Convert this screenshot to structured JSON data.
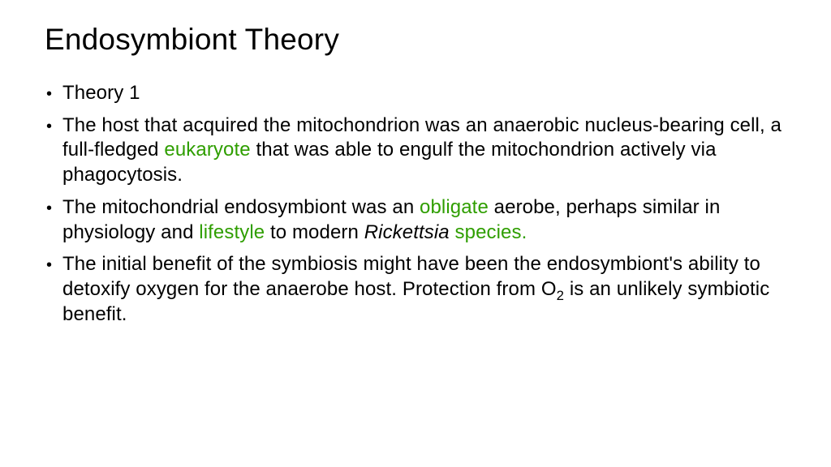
{
  "colors": {
    "background": "#ffffff",
    "text": "#000000",
    "highlight": "#2f9e00"
  },
  "typography": {
    "family": "Segoe UI Light",
    "title_fontsize": 37,
    "body_fontsize": 24,
    "line_height": 1.28,
    "weight": 300
  },
  "title": "Endosymbiont Theory",
  "bullets": {
    "b1": {
      "t1": "Theory 1"
    },
    "b2": {
      "t1": "The host that acquired the mitochondrion was an anaerobic nucleus-bearing cell, a full-fledged ",
      "hl1": "eukaryote",
      "t2": " that was able to engulf the mitochondrion actively via phagocytosis."
    },
    "b3": {
      "t1": "The mitochondrial endosymbiont was an ",
      "hl1": "obligate",
      "t2": " aerobe, perhaps similar in physiology and ",
      "hl2": "lifestyle",
      "t3": " to modern ",
      "it1": "Rickettsia",
      "hl3": " species."
    },
    "b4": {
      "t1": "The initial benefit of the symbiosis might have been the endosymbiont's ability to detoxify oxygen for the anaerobe host. Protection from O",
      "sub1": "2",
      "t2": " is an unlikely symbiotic benefit."
    }
  }
}
